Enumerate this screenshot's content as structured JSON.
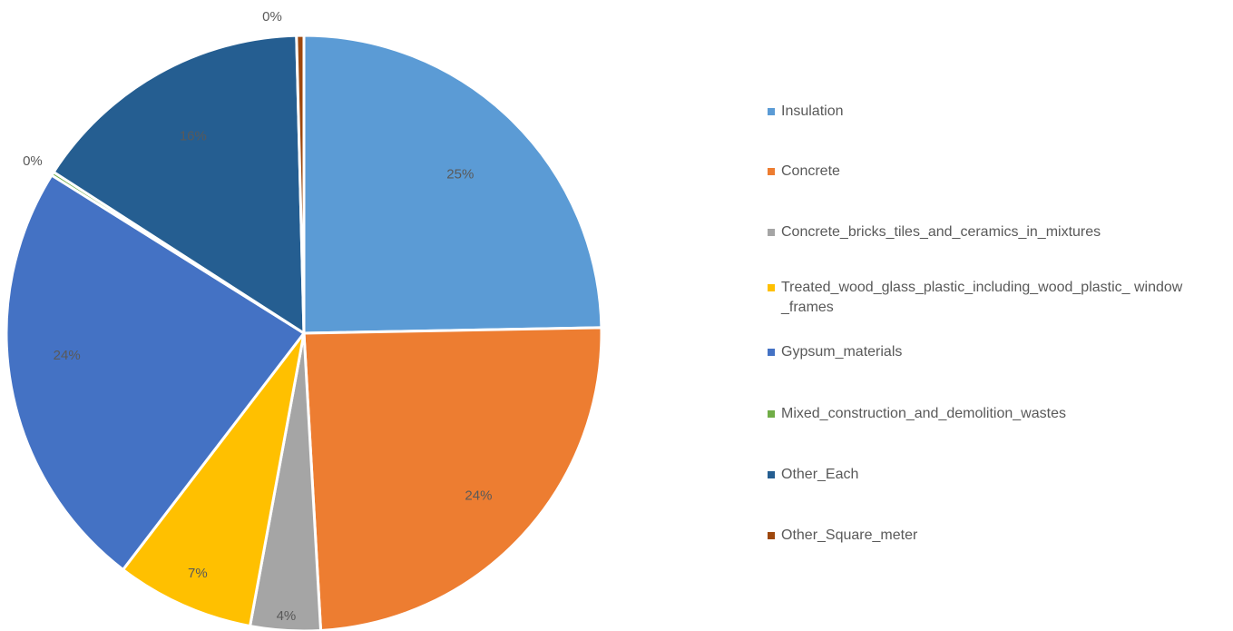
{
  "chart_data": {
    "type": "pie",
    "title": "",
    "series": [
      {
        "categories": [
          "Insulation",
          "Concrete",
          "Concrete_bricks_tiles_and_ceramics_in_mixtures",
          "Treated_wood_glass_plastic_including_wood_plastic_window_frames",
          "Gypsum_materials",
          "Mixed_construction_and_demolition_wastes",
          "Other_Each",
          "Other_Square_meter"
        ],
        "values": [
          24.7,
          24.4,
          3.8,
          7.5,
          23.5,
          0.2,
          15.5,
          0.4
        ],
        "labels": [
          "25%",
          "24%",
          "4%",
          "7%",
          "24%",
          "0%",
          "16%",
          "0%"
        ]
      }
    ],
    "colors": [
      "#5B9BD5",
      "#ED7D31",
      "#A5A5A5",
      "#FFC000",
      "#4472C4",
      "#70AD47",
      "#255E91",
      "#9E480E"
    ],
    "legend": {
      "position": "right",
      "entries": [
        "Insulation",
        "Concrete",
        "Concrete_bricks_tiles_and_ceramics_in_mixtures",
        "Treated_wood_glass_plastic_including_wood_plastic_ window_frames",
        "Gypsum_materials",
        "Mixed_construction_and_demolition_wastes",
        "Other_Each",
        "Other_Square_meter"
      ]
    }
  }
}
